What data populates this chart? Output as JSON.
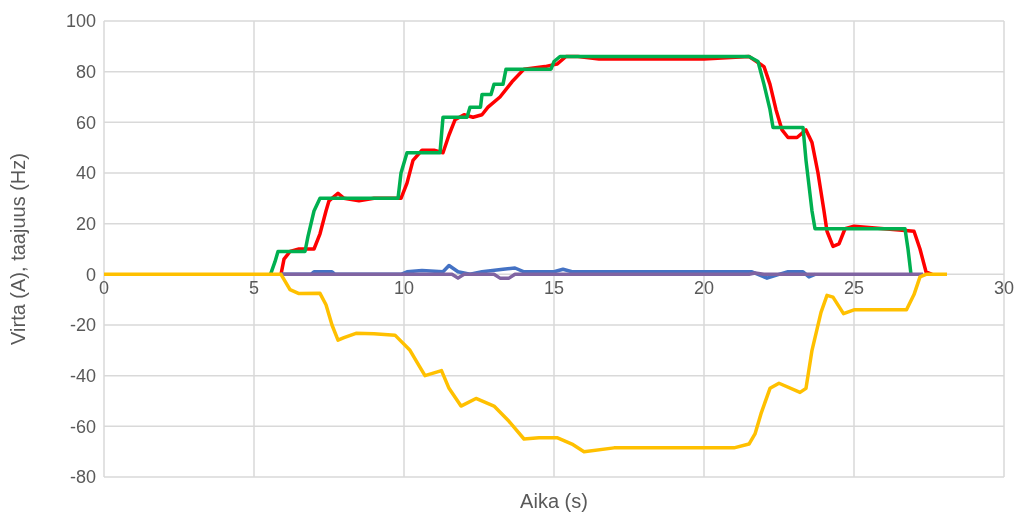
{
  "chart_data": {
    "type": "line",
    "xlabel": "Aika (s)",
    "ylabel": "Virta (A), taajuus (Hz)",
    "xlim": [
      0,
      30
    ],
    "xticks": [
      0,
      5,
      10,
      15,
      20,
      25,
      30
    ],
    "ylim": [
      -80,
      100
    ],
    "yticks": [
      -80,
      -60,
      -40,
      -20,
      0,
      20,
      40,
      60,
      80,
      100
    ],
    "grid": true,
    "legend": false,
    "marker": "none",
    "line_style": "solid",
    "series": [
      {
        "color": "#ff0000",
        "x": [
          5.9,
          6.0,
          6.2,
          6.5,
          7.0,
          7.2,
          7.4,
          7.5,
          7.8,
          8.0,
          8.5,
          9.0,
          9.9,
          10.1,
          10.3,
          10.6,
          11.0,
          11.3,
          11.5,
          11.7,
          12.0,
          12.3,
          12.6,
          12.8,
          13.2,
          13.6,
          14.0,
          14.7,
          15.1,
          15.4,
          15.8,
          16.5,
          20,
          21.5,
          22.0,
          22.2,
          22.4,
          22.6,
          22.8,
          23.1,
          23.4,
          23.6,
          23.8,
          24.0,
          24.1,
          24.3,
          24.5,
          24.7,
          25,
          27.0,
          27.2,
          27.4,
          27.6
        ],
        "values": [
          0,
          6,
          9,
          10,
          10,
          16,
          25,
          29,
          32,
          30,
          29,
          30,
          30,
          36,
          45,
          49,
          49,
          48,
          55,
          61,
          63,
          62,
          63,
          66,
          70,
          76,
          81,
          82,
          83,
          86,
          86,
          85,
          85,
          86,
          82,
          75,
          65,
          57,
          54,
          54,
          57,
          52,
          40,
          25,
          17,
          11,
          12,
          18,
          19,
          17,
          10,
          1,
          0
        ]
      },
      {
        "color": "#00b050",
        "x": [
          5.55,
          5.7,
          5.8,
          6.7,
          6.8,
          7.0,
          7.2,
          9.8,
          9.9,
          10.1,
          11.2,
          11.25,
          11.3,
          12.1,
          12.2,
          12.55,
          12.6,
          12.9,
          13.0,
          13.3,
          13.4,
          14.9,
          15.0,
          15.2,
          21.5,
          21.8,
          22.0,
          22.2,
          22.3,
          23.3,
          23.4,
          23.5,
          23.6,
          23.7,
          26.7,
          26.8,
          26.9
        ],
        "values": [
          0,
          5,
          9,
          9,
          15,
          25,
          30,
          30,
          40,
          48,
          48,
          55,
          62,
          62,
          66,
          66,
          71,
          71,
          75,
          75,
          81,
          81,
          84,
          86,
          86,
          84,
          75,
          65,
          58,
          58,
          45,
          35,
          25,
          18,
          18,
          10,
          0
        ]
      },
      {
        "color": "#4472c4",
        "x": [
          5.9,
          6.9,
          7.0,
          7.6,
          7.7,
          9.9,
          10.1,
          10.6,
          11.3,
          11.5,
          11.8,
          12.2,
          12.6,
          13.3,
          13.7,
          14.0,
          15.0,
          15.3,
          15.6,
          17,
          19,
          21,
          21.6,
          22.1,
          22.5,
          22.8,
          23.3,
          23.5,
          23.7
        ],
        "values": [
          0,
          0,
          1,
          1,
          0,
          0,
          1,
          1.5,
          1,
          3.5,
          1,
          0,
          1,
          2,
          2.5,
          1,
          1,
          2,
          1,
          1,
          1,
          1,
          1,
          -1.5,
          0,
          1,
          1,
          -1,
          0
        ]
      },
      {
        "color": "#8064a2",
        "x": [
          5.9,
          11.6,
          11.8,
          12.0,
          13.0,
          13.2,
          13.5,
          13.7,
          21.5,
          21.7,
          22.0,
          27.3
        ],
        "values": [
          0,
          0,
          -1.5,
          0,
          0,
          -1.5,
          -1.5,
          0,
          0,
          0.5,
          0,
          0
        ]
      },
      {
        "color": "#ffc000",
        "x": [
          0,
          5.9,
          6.2,
          6.5,
          7.2,
          7.4,
          7.6,
          7.8,
          8.0,
          8.4,
          9.0,
          9.7,
          10.2,
          10.5,
          10.7,
          11.25,
          11.5,
          11.9,
          12.4,
          13.0,
          13.5,
          14.0,
          14.5,
          15.1,
          15.6,
          16.0,
          17,
          18,
          20,
          21.0,
          21.5,
          21.7,
          21.9,
          22.2,
          22.5,
          23.2,
          23.4,
          23.6,
          23.9,
          24.1,
          24.3,
          24.65,
          25,
          26,
          26.75,
          27.0,
          27.2,
          27.4,
          28.1
        ],
        "values": [
          0,
          0,
          -6,
          -7.6,
          -7.5,
          -12,
          -20,
          -26,
          -25,
          -23.3,
          -23.5,
          -24,
          -30,
          -36,
          -40,
          -38,
          -45,
          -52,
          -49,
          -52,
          -58,
          -65,
          -64.5,
          -64.5,
          -67,
          -70,
          -68.5,
          -68.5,
          -68.5,
          -68.5,
          -67,
          -63,
          -55,
          -45,
          -43,
          -46.6,
          -45,
          -30,
          -15,
          -8.3,
          -9,
          -15.5,
          -14,
          -14,
          -14,
          -8,
          -1,
          0,
          0
        ]
      }
    ]
  }
}
